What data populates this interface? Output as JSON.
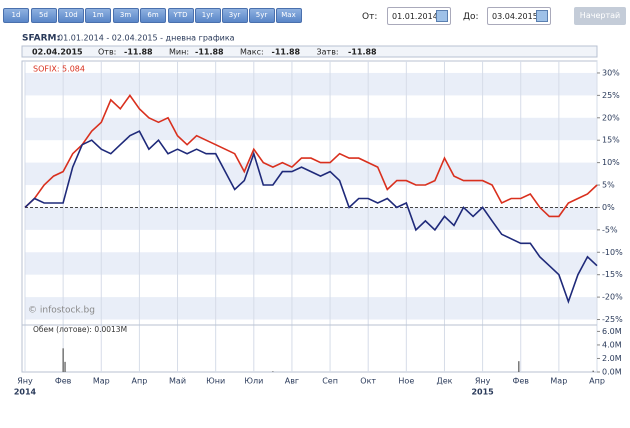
{
  "toolbar": {
    "ranges": [
      "1d",
      "5d",
      "10d",
      "1m",
      "3m",
      "6m",
      "YTD",
      "1yr",
      "3yr",
      "5yr",
      "Max"
    ],
    "from_label": "От:",
    "from_value": "01.01.2014",
    "to_label": "До:",
    "to_value": "03.04.2015",
    "draw_button": "Начертай"
  },
  "header": {
    "symbol": "SFARM:",
    "period": "01.01.2014 - 02.04.2015 - дневна графика",
    "info": {
      "date": "02.04.2015",
      "fields": [
        {
          "label": "Отв:",
          "value": -11.88
        },
        {
          "label": "Мин:",
          "value": -11.88
        },
        {
          "label": "Макс:",
          "value": -11.88
        },
        {
          "label": "Затв:",
          "value": -11.88
        }
      ]
    },
    "watermark": "© infostock.bg"
  },
  "chart_data": [
    {
      "type": "line",
      "x": [
        0,
        0.25,
        0.5,
        0.75,
        1,
        1.25,
        1.5,
        1.75,
        2,
        2.25,
        2.5,
        2.75,
        3,
        3.25,
        3.5,
        3.75,
        4,
        4.25,
        4.5,
        4.75,
        5,
        5.25,
        5.5,
        5.75,
        6,
        6.25,
        6.5,
        6.75,
        7,
        7.25,
        7.5,
        7.75,
        8,
        8.25,
        8.5,
        8.75,
        9,
        9.25,
        9.5,
        9.75,
        10,
        10.25,
        10.5,
        10.75,
        11,
        11.25,
        11.5,
        11.75,
        12,
        12.25,
        12.5,
        12.75,
        13,
        13.25,
        13.5,
        13.75,
        14,
        14.25,
        14.5,
        14.75,
        15
      ],
      "series": [
        {
          "name": "SOFIX: 5.084",
          "color": "#d9301e",
          "values": [
            0,
            2,
            5,
            7,
            8,
            12,
            14,
            17,
            19,
            24,
            22,
            25,
            22,
            20,
            19,
            20,
            16,
            14,
            16,
            15,
            14,
            13,
            12,
            8,
            13,
            10,
            9,
            10,
            9,
            11,
            11,
            10,
            10,
            12,
            11,
            11,
            10,
            9,
            4,
            6,
            6,
            5,
            5,
            6,
            11,
            7,
            6,
            6,
            6,
            5,
            1,
            2,
            2,
            3,
            0,
            -2,
            -2,
            1,
            2,
            3,
            5
          ]
        },
        {
          "color": "#1f2a7a",
          "values": [
            0,
            2,
            1,
            1,
            1,
            9,
            14,
            15,
            13,
            12,
            14,
            16,
            17,
            13,
            15,
            12,
            13,
            12,
            13,
            12,
            12,
            8,
            4,
            6,
            12,
            5,
            5,
            8,
            8,
            9,
            8,
            7,
            8,
            6,
            0,
            2,
            2,
            1,
            2,
            0,
            1,
            -5,
            -3,
            -5,
            -2,
            -4,
            0,
            -2,
            0,
            -3,
            -6,
            -7,
            -8,
            -8,
            -11,
            -13,
            -15,
            -21,
            -15,
            -11,
            -13
          ]
        }
      ],
      "xlim": [
        0,
        15
      ],
      "xticks": [
        {
          "value": 0,
          "label": "Яну"
        },
        {
          "value": 1,
          "label": "Фев"
        },
        {
          "value": 2,
          "label": "Мар"
        },
        {
          "value": 3,
          "label": "Апр"
        },
        {
          "value": 4,
          "label": "Май"
        },
        {
          "value": 5,
          "label": "Юни"
        },
        {
          "value": 6,
          "label": "Юли"
        },
        {
          "value": 7,
          "label": "Авг"
        },
        {
          "value": 8,
          "label": "Сеп"
        },
        {
          "value": 9,
          "label": "Окт"
        },
        {
          "value": 10,
          "label": "Ное"
        },
        {
          "value": 11,
          "label": "Дек"
        },
        {
          "value": 12,
          "label": "Яну"
        },
        {
          "value": 13,
          "label": "Фев"
        },
        {
          "value": 14,
          "label": "Мар"
        },
        {
          "value": 15,
          "label": "Апр"
        }
      ],
      "year_labels": [
        {
          "value": 0,
          "label": "2014"
        },
        {
          "value": 12,
          "label": "2015"
        }
      ],
      "ylim": [
        -26,
        32
      ],
      "yticks": [
        {
          "value": 30,
          "label": "30%"
        },
        {
          "value": 25,
          "label": "25%"
        },
        {
          "value": 20,
          "label": "20%"
        },
        {
          "value": 15,
          "label": "15%"
        },
        {
          "value": 10,
          "label": "10%"
        },
        {
          "value": 5,
          "label": "5%"
        },
        {
          "value": 0,
          "label": "0%"
        },
        {
          "value": -5,
          "label": "-5%"
        },
        {
          "value": -10,
          "label": "-10%"
        },
        {
          "value": -15,
          "label": "-15%"
        },
        {
          "value": -20,
          "label": "-20%"
        },
        {
          "value": -25,
          "label": "-25%"
        }
      ],
      "grid": true,
      "banded": true,
      "zero_line": true
    },
    {
      "type": "bar",
      "title": "Обем (лотове): 0.0013M",
      "color": "#555555",
      "x": [
        1,
        1.05,
        6.5,
        12.95,
        14.9
      ],
      "values": [
        3.5,
        1.5,
        0.1,
        1.6,
        0.2
      ],
      "ylim": [
        0,
        6.8
      ],
      "yticks": [
        {
          "value": 6,
          "label": "6.0M"
        },
        {
          "value": 4,
          "label": "4.0M"
        },
        {
          "value": 2,
          "label": "2.0M"
        },
        {
          "value": 0,
          "label": "0.0M"
        }
      ]
    }
  ]
}
